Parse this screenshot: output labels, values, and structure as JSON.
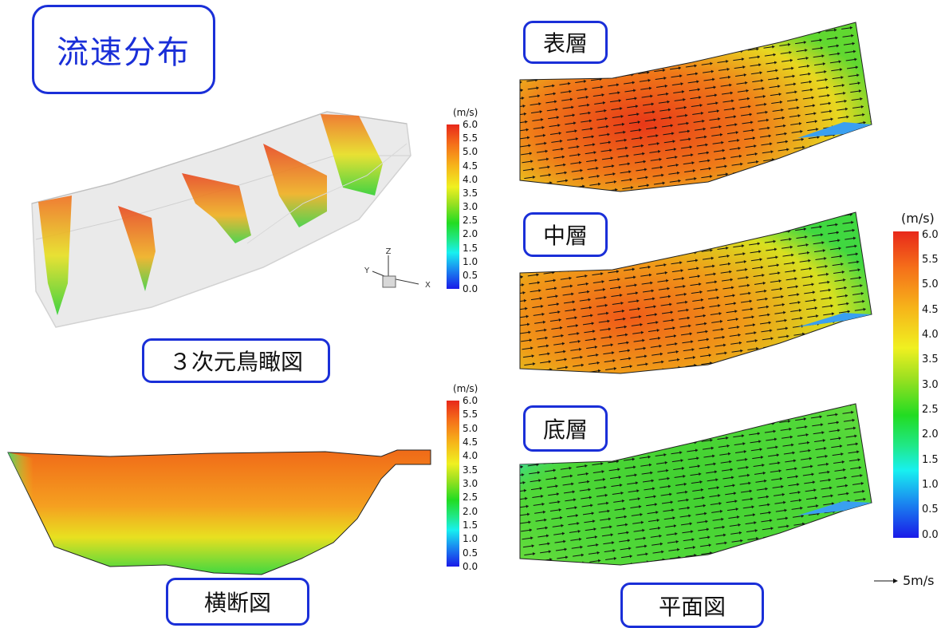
{
  "title": "流速分布",
  "captions": {
    "bird_view": "３次元鳥瞰図",
    "cross_section": "横断図",
    "plan_view": "平面図"
  },
  "layers": {
    "surface": "表層",
    "middle": "中層",
    "bottom": "底層"
  },
  "legend": {
    "unit": "(m/s)",
    "ticks": [
      "6.0",
      "5.5",
      "5.0",
      "4.5",
      "4.0",
      "3.5",
      "3.0",
      "2.5",
      "2.0",
      "1.5",
      "1.0",
      "0.5",
      "0.0"
    ],
    "ticks_plan": [
      "6.0",
      "5.5",
      "5.0",
      "4.5",
      "4.0",
      "3.5",
      "3.0",
      "2.5",
      "2.0",
      "1.5",
      "1.0",
      "0.5",
      "0.0"
    ]
  },
  "reference_vector": "5m/s",
  "axes": {
    "z": "Z",
    "y": "Y",
    "x": "X"
  },
  "colors": {
    "accent": "#1a2fd8"
  }
}
